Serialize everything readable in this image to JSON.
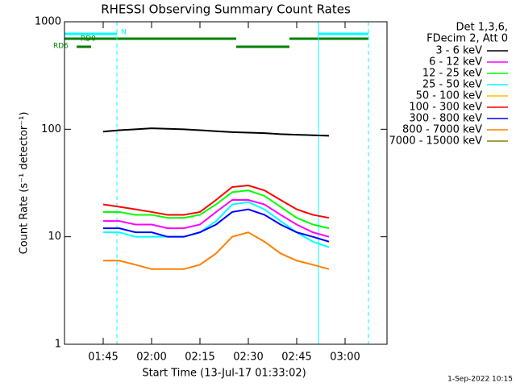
{
  "chart_data": {
    "type": "line",
    "title": "RHESSI Observing Summary Count Rates",
    "y_label": "Count Rate (s⁻¹ detector⁻¹)",
    "x_label": "Start Time (13-Jul-17 01:33:02)",
    "footer": "1-Sep-2022 10:15",
    "legend_header": [
      "Det 1,3,6,",
      "FDecim 2, Att 0"
    ],
    "flags": [
      "N",
      "RD0",
      "RD6"
    ],
    "log_y": true,
    "ylim": [
      1,
      1000
    ],
    "yticks": [
      1,
      10,
      100,
      1000
    ],
    "xlim": [
      "01:33",
      "03:13"
    ],
    "xticks": [
      "01:45",
      "02:00",
      "02:15",
      "02:30",
      "02:45",
      "03:00"
    ],
    "x": [
      "01:45",
      "01:50",
      "01:55",
      "02:00",
      "02:05",
      "02:10",
      "02:15",
      "02:20",
      "02:25",
      "02:30",
      "02:35",
      "02:40",
      "02:45",
      "02:50",
      "02:55"
    ],
    "series": [
      {
        "name": "3 - 6 keV",
        "color": "#000000",
        "values": [
          95,
          98,
          100,
          102,
          101,
          100,
          98,
          96,
          94,
          93,
          92,
          90,
          89,
          88,
          87
        ]
      },
      {
        "name": "6 - 12 keV",
        "color": "#ff00ff",
        "values": [
          14,
          14,
          13,
          13,
          12,
          12,
          13,
          17,
          22,
          22,
          20,
          16,
          13,
          11,
          10
        ]
      },
      {
        "name": "12 - 25 keV",
        "color": "#00ff00",
        "values": [
          17,
          17,
          16,
          16,
          15,
          15,
          16,
          20,
          26,
          27,
          24,
          19,
          15,
          13,
          12
        ]
      },
      {
        "name": "25 - 50 keV",
        "color": "#00ffff",
        "values": [
          11,
          11,
          10,
          10,
          10,
          10,
          11,
          14,
          20,
          21,
          18,
          14,
          11,
          9,
          8
        ]
      },
      {
        "name": "50 - 100 keV",
        "color": "#ffc000",
        "values": [
          null,
          null,
          null,
          null,
          null,
          null,
          null,
          null,
          null,
          null,
          null,
          null,
          null,
          null,
          null
        ]
      },
      {
        "name": "100 - 300 keV",
        "color": "#ff0000",
        "values": [
          20,
          19,
          18,
          17,
          16,
          16,
          17,
          22,
          29,
          30,
          27,
          22,
          18,
          16,
          15
        ]
      },
      {
        "name": "300 - 800 keV",
        "color": "#0000ff",
        "values": [
          12,
          12,
          11,
          11,
          10,
          10,
          11,
          13,
          17,
          18,
          16,
          13,
          11,
          10,
          9
        ]
      },
      {
        "name": "800 - 7000 keV",
        "color": "#ff8000",
        "values": [
          6,
          6,
          5.5,
          5,
          5,
          5,
          5.5,
          7,
          10,
          11,
          9,
          7,
          6,
          5.5,
          5
        ]
      },
      {
        "name": "7000 - 15000 keV",
        "color": "#808000",
        "values": [
          null,
          null,
          null,
          null,
          null,
          null,
          null,
          null,
          null,
          null,
          null,
          null,
          null,
          null,
          null
        ]
      }
    ]
  }
}
